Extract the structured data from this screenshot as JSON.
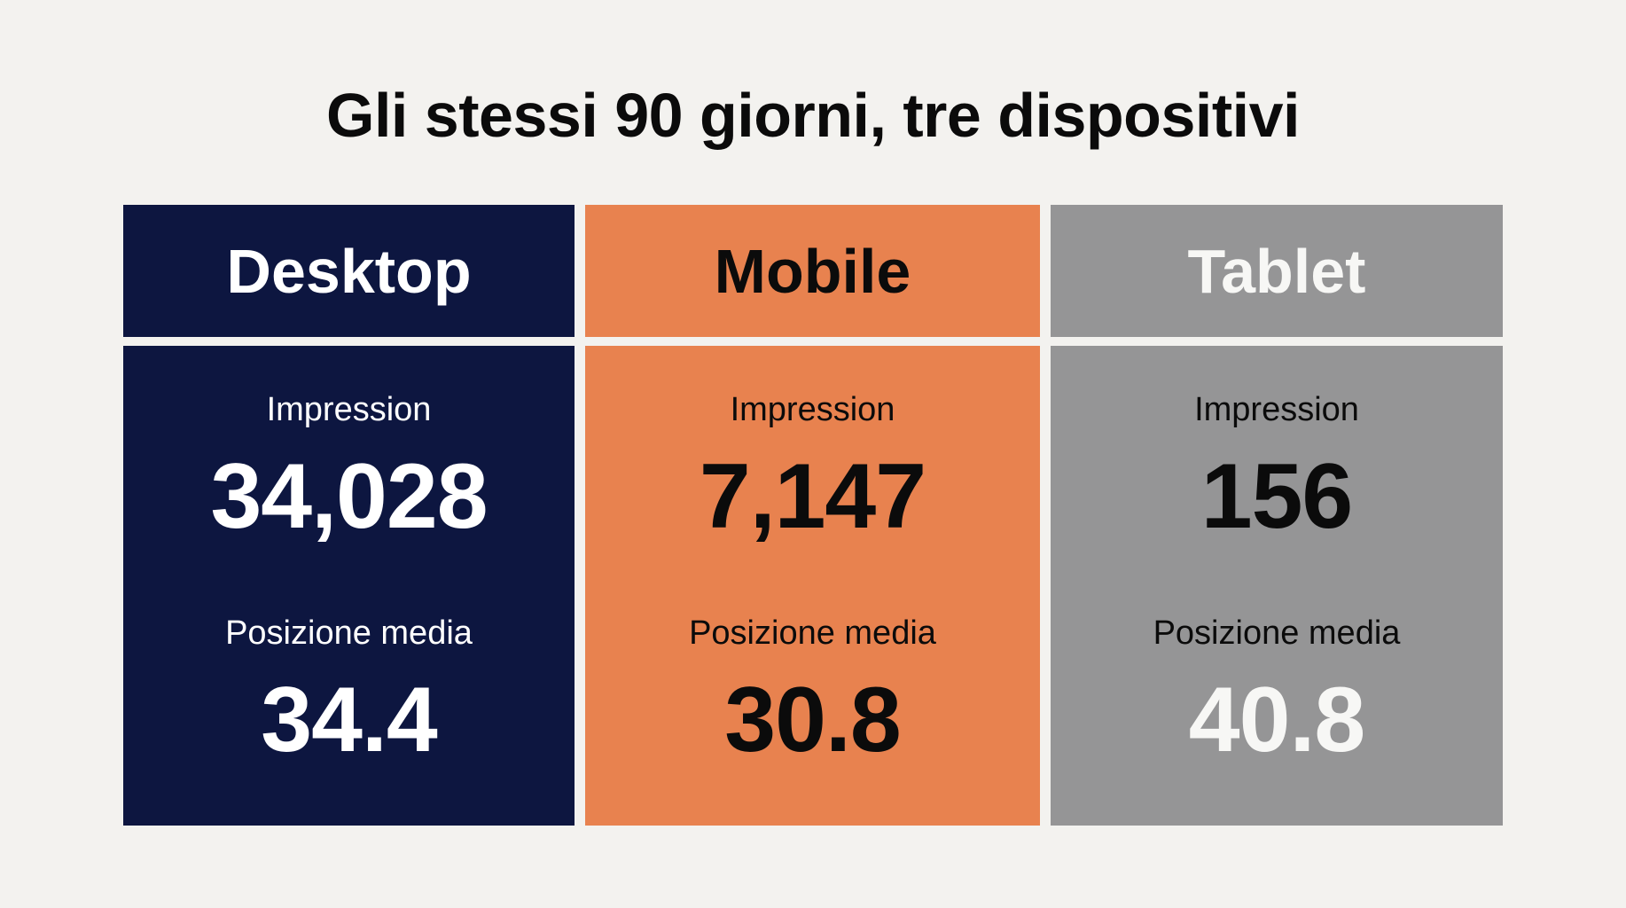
{
  "title": "Gli stessi 90 giorni, tre dispositivi",
  "colors": {
    "background": "#f3f2ef",
    "desktop": "#0d1640",
    "mobile": "#e8824f",
    "tablet": "#959596"
  },
  "devices": [
    {
      "name": "Desktop",
      "impression_label": "Impression",
      "impression_value": "34,028",
      "position_label": "Posizione media",
      "position_value": "34.4"
    },
    {
      "name": "Mobile",
      "impression_label": "Impression",
      "impression_value": "7,147",
      "position_label": "Posizione media",
      "position_value": "30.8"
    },
    {
      "name": "Tablet",
      "impression_label": "Impression",
      "impression_value": "156",
      "position_label": "Posizione media",
      "position_value": "40.8"
    }
  ]
}
